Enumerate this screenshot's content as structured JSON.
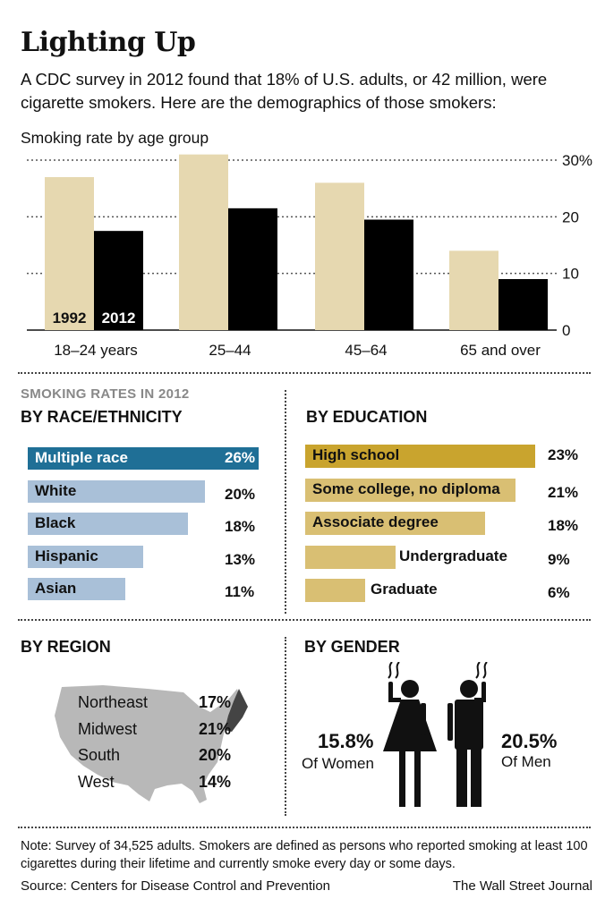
{
  "title": "Lighting Up",
  "intro": "A CDC survey in 2012 found that 18% of U.S. adults, or 42 million, were cigarette smokers. Here are the demographics of those smokers:",
  "colors": {
    "y1992": "#e6d8b0",
    "y2012": "#000000",
    "race": "#a9c0d8",
    "race_highlight": "#1f6f96",
    "edu": "#d9bf73",
    "edu_highlight": "#c9a42e",
    "map": "#b8b8b8",
    "map_ne": "#444444"
  },
  "chart_data": [
    {
      "type": "bar",
      "title": "Smoking rate by age group",
      "categories": [
        "18–24 years",
        "25–44",
        "45–64",
        "65 and over"
      ],
      "series": [
        {
          "name": "1992",
          "values": [
            27,
            31,
            26,
            14
          ]
        },
        {
          "name": "2012",
          "values": [
            17.5,
            21.5,
            19.5,
            9
          ]
        }
      ],
      "y_ticks": [
        "30%",
        "20",
        "10",
        "0"
      ],
      "y_tick_values": [
        30,
        20,
        10,
        0
      ],
      "ylim": [
        0,
        30
      ],
      "grid": true
    },
    {
      "type": "bar",
      "title": "BY RACE/ETHNICITY",
      "categories": [
        "Multiple race",
        "White",
        "Black",
        "Hispanic",
        "Asian"
      ],
      "values": [
        26,
        20,
        18,
        13,
        11
      ],
      "value_labels": [
        "26%",
        "20%",
        "18%",
        "13%",
        "11%"
      ]
    },
    {
      "type": "bar",
      "title": "BY EDUCATION",
      "categories": [
        "High school",
        "Some college, no diploma",
        "Associate degree",
        "Undergraduate",
        "Graduate"
      ],
      "values": [
        23,
        21,
        18,
        9,
        6
      ],
      "value_labels": [
        "23%",
        "21%",
        "18%",
        "9%",
        "6%"
      ]
    }
  ],
  "section_kicker": "SMOKING RATES IN  2012",
  "region": {
    "title": "BY REGION",
    "rows": [
      {
        "name": "Northeast",
        "pct": "17%"
      },
      {
        "name": "Midwest",
        "pct": "21%"
      },
      {
        "name": "South",
        "pct": "20%"
      },
      {
        "name": "West",
        "pct": "14%"
      }
    ]
  },
  "gender": {
    "title": "BY GENDER",
    "women_pct": "15.8%",
    "women_label": "Of Women",
    "men_pct": "20.5%",
    "men_label": "Of Men"
  },
  "note": "Note: Survey of 34,525 adults. Smokers are defined as persons who reported smoking at least 100 cigarettes during their lifetime and currently smoke every day or some days.",
  "source": "Source: Centers for Disease Control and Prevention",
  "credit": "The Wall Street Journal"
}
